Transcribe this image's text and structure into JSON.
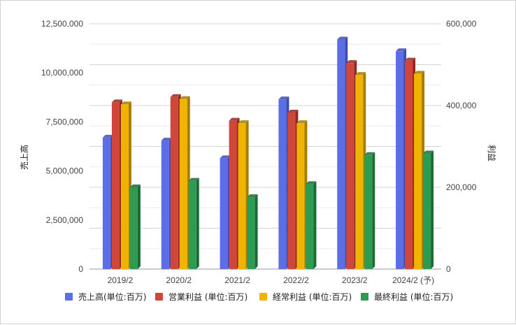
{
  "chart_data": {
    "type": "bar",
    "categories": [
      "2019/2",
      "2020/2",
      "2021/2",
      "2022/2",
      "2023/2",
      "2024/2 (予)"
    ],
    "ylabel": "売上高",
    "y2label": "利益",
    "ylim": [
      0,
      12500000
    ],
    "y2lim": [
      0,
      600000
    ],
    "yticks": [
      "0",
      "2,500,000",
      "5,000,000",
      "7,500,000",
      "10,000,000",
      "12,500,000"
    ],
    "y2ticks": [
      "0",
      "200,000",
      "400,000",
      "600,000"
    ],
    "grid": true,
    "legend_position": "bottom",
    "series": [
      {
        "name": "売上高(単位:百万)",
        "axis": "left",
        "color": "#5b6ee8",
        "side": "#3d4cb0",
        "values": [
          6700000,
          6550000,
          5650000,
          8650000,
          11700000,
          11100000
        ]
      },
      {
        "name": "営業利益 (単位:百万)",
        "axis": "right",
        "color": "#d0463a",
        "side": "#93281f",
        "values": [
          408000,
          421000,
          363000,
          383000,
          504000,
          510000
        ]
      },
      {
        "name": "経常利益 (単位:百万)",
        "axis": "right",
        "color": "#f0b400",
        "side": "#a67c00",
        "values": [
          403000,
          416000,
          357000,
          357000,
          475000,
          478000
        ]
      },
      {
        "name": "最終利益 (単位:百万)",
        "axis": "right",
        "color": "#2e9b52",
        "side": "#1b6a35",
        "values": [
          200000,
          216000,
          176000,
          208000,
          279000,
          283000
        ]
      }
    ]
  }
}
